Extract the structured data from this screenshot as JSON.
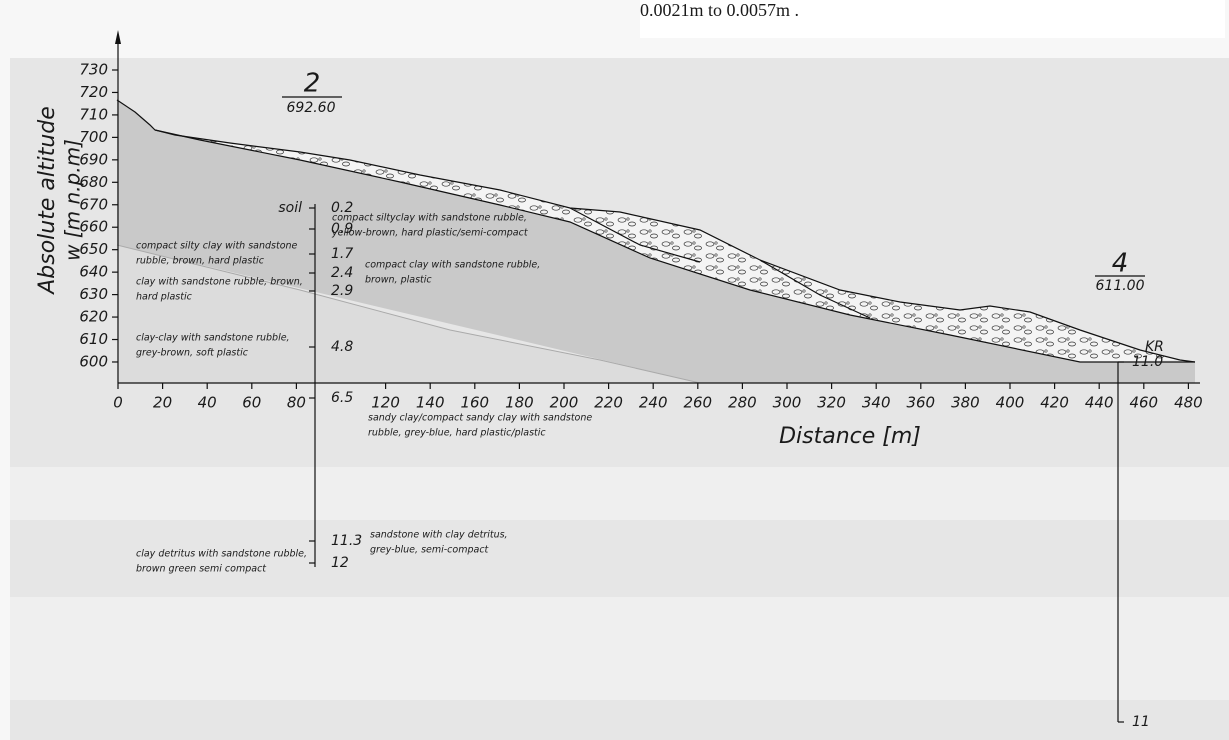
{
  "note": "0.0021m to 0.0057m .",
  "axes": {
    "y_title": "Absolute altitude",
    "y_unit": "w [m n.p.m]",
    "yticks": [
      730,
      720,
      710,
      700,
      690,
      680,
      670,
      660,
      650,
      640,
      630,
      620,
      610,
      600
    ],
    "x_title": "Distance [m]",
    "xticks": [
      0,
      20,
      40,
      60,
      80,
      120,
      140,
      160,
      180,
      200,
      220,
      240,
      260,
      280,
      300,
      320,
      340,
      360,
      380,
      400,
      420,
      440,
      460,
      480
    ]
  },
  "boreholes": [
    {
      "number": "2",
      "elevation": "692.60",
      "soil": "soil",
      "depths": [
        0.2,
        0.9,
        1.7,
        2.4,
        2.9,
        4.8,
        6.5,
        11.3,
        12
      ]
    },
    {
      "number": "4",
      "elevation": "611.00",
      "code": "KR",
      "depths": [
        "11.0",
        11
      ]
    }
  ],
  "layers": [
    [
      "compact siltyclay with sandstone rubble,",
      "yellow-brown, hard plastic/semi-compact"
    ],
    [
      "compact silty clay with sandstone",
      "rubble, brown, hard plastic"
    ],
    [
      "compact clay with sandstone rubble,",
      "brown, plastic"
    ],
    [
      "clay with sandstone rubble, brown,",
      "hard plastic"
    ],
    [
      "clay-clay with sandstone rubble,",
      "grey-brown, soft plastic"
    ],
    [
      "sandy clay/compact sandy clay with sandstone",
      "rubble, grey-blue, hard plastic/plastic"
    ],
    [
      "sandstone with clay detritus,",
      "grey-blue, semi-compact"
    ],
    [
      "clay detritus with sandstone rubble,",
      "brown green semi compact"
    ]
  ]
}
